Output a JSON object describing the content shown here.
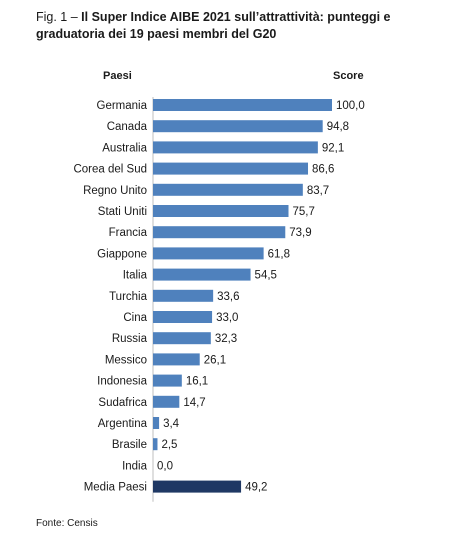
{
  "title": {
    "prefix": "Fig. 1 – ",
    "bold": "Il Super Indice AIBE 2021 sull’attrattività: punteggi e graduatoria dei 19 paesi membri del G20"
  },
  "headers": {
    "categories": "Paesi",
    "values": "Score"
  },
  "source": "Fonte: Censis",
  "colors": {
    "bar": "#4f81bd",
    "average_bar": "#1f3864"
  },
  "chart_data": {
    "type": "bar",
    "orientation": "horizontal",
    "categories": [
      "Germania",
      "Canada",
      "Australia",
      "Corea del Sud",
      "Regno Unito",
      "Stati Uniti",
      "Francia",
      "Giappone",
      "Italia",
      "Turchia",
      "Cina",
      "Russia",
      "Messico",
      "Indonesia",
      "Sudafrica",
      "Argentina",
      "Brasile",
      "India",
      "Media Paesi"
    ],
    "values": [
      100.0,
      94.8,
      92.1,
      86.6,
      83.7,
      75.7,
      73.9,
      61.8,
      54.5,
      33.6,
      33.0,
      32.3,
      26.1,
      16.1,
      14.7,
      3.4,
      2.5,
      0.0,
      49.2
    ],
    "value_labels": [
      "100,0",
      "94,8",
      "92,1",
      "86,6",
      "83,7",
      "75,7",
      "73,9",
      "61,8",
      "54,5",
      "33,6",
      "33,0",
      "32,3",
      "26,1",
      "16,1",
      "14,7",
      "3,4",
      "2,5",
      "0,0",
      "49,2"
    ],
    "highlight_index": 18,
    "xlim": [
      0,
      100
    ],
    "grid": false,
    "data_labels": true
  }
}
